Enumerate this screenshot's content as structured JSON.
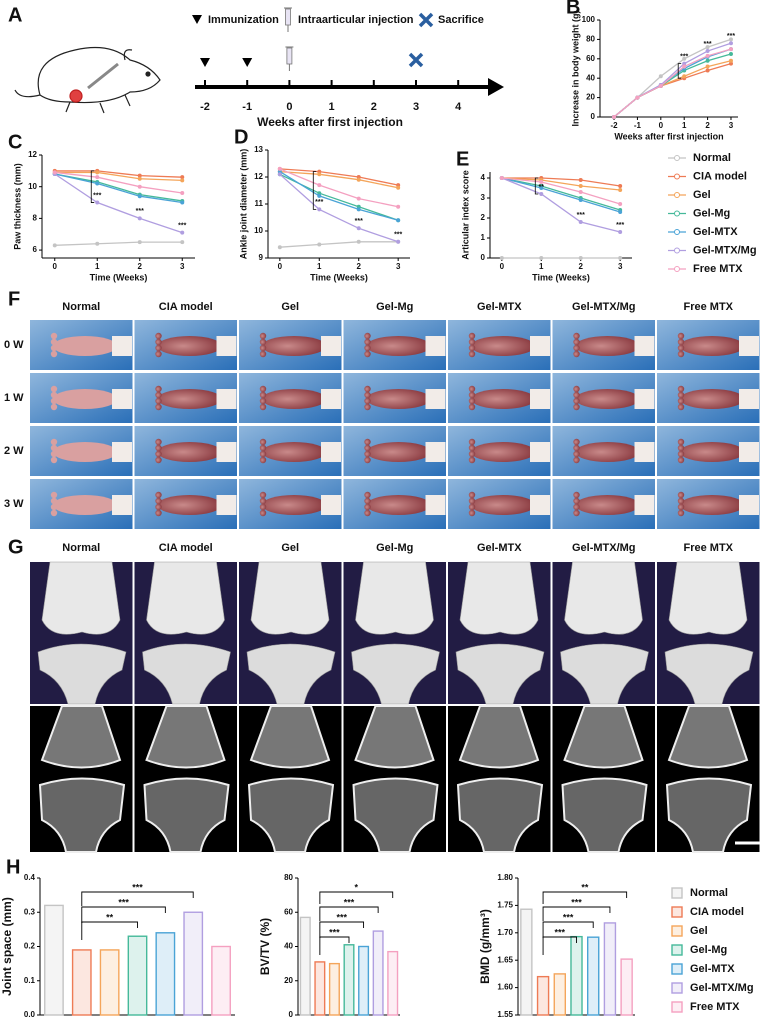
{
  "timeline": {
    "panel": "A",
    "legend": [
      "Immunization",
      "Intraarticular injection",
      "Sacrifice"
    ],
    "ticks": [
      -2,
      -1,
      0,
      1,
      2,
      3,
      4
    ],
    "xlabel": "Weeks after first injection",
    "immunization_weeks": [
      -2,
      -1
    ],
    "injection_weeks": [
      0
    ],
    "sacrifice_weeks": [
      3
    ]
  },
  "photos": {
    "panel": "F",
    "columns": [
      "Normal",
      "CIA model",
      "Gel",
      "Gel-Mg",
      "Gel-MTX",
      "Gel-MTX/Mg",
      "Free MTX"
    ],
    "rows": [
      "0 W",
      "1 W",
      "2 W",
      "3 W"
    ]
  },
  "microct": {
    "panel": "G",
    "columns": [
      "Normal",
      "CIA model",
      "Gel",
      "Gel-Mg",
      "Gel-MTX",
      "Gel-MTX/Mg",
      "Free MTX"
    ]
  },
  "chart_data": [
    {
      "type": "line",
      "panel": "B",
      "ylabel": "Increase in body weight (g)",
      "xlabel": "Weeks after first injection",
      "x": [
        -2,
        -1,
        0,
        1,
        2,
        3
      ],
      "xlim": [
        -2.6,
        3.3
      ],
      "xticks": [
        -2,
        -1,
        0,
        1,
        2,
        3
      ],
      "ylim": [
        0,
        100
      ],
      "yticks": [
        0,
        20,
        40,
        60,
        80,
        100
      ],
      "annotations": [
        "***",
        "***",
        "***"
      ],
      "series": [
        {
          "name": "Normal",
          "color": "#c4c4c4",
          "values": [
            0,
            20,
            42,
            60,
            72,
            80
          ]
        },
        {
          "name": "CIA model",
          "color": "#ee7b55",
          "values": [
            0,
            20,
            32,
            40,
            48,
            55
          ]
        },
        {
          "name": "Gel",
          "color": "#f4a55a",
          "values": [
            0,
            20,
            32,
            42,
            52,
            58
          ]
        },
        {
          "name": "Gel-Mg",
          "color": "#45b99a",
          "values": [
            0,
            20,
            32,
            48,
            58,
            65
          ]
        },
        {
          "name": "Gel-MTX",
          "color": "#4aa3d6",
          "values": [
            0,
            20,
            33,
            50,
            62,
            70
          ]
        },
        {
          "name": "Gel-MTX/Mg",
          "color": "#b09ee0",
          "values": [
            0,
            20,
            33,
            55,
            68,
            76
          ]
        },
        {
          "name": "Free MTX",
          "color": "#f4a0c0",
          "values": [
            0,
            20,
            32,
            52,
            63,
            70
          ]
        }
      ]
    },
    {
      "type": "line",
      "panel": "C",
      "ylabel": "Paw thickness (mm)",
      "xlabel": "Time (Weeks)",
      "x": [
        0,
        1,
        2,
        3
      ],
      "xlim": [
        -0.3,
        3.3
      ],
      "xticks": [
        0,
        1,
        2,
        3
      ],
      "ylim": [
        5.5,
        12
      ],
      "yticks": [
        6,
        8,
        10,
        12
      ],
      "annotations": [
        "***",
        "***",
        "***"
      ],
      "series": [
        {
          "name": "Normal",
          "color": "#c4c4c4",
          "values": [
            6.3,
            6.4,
            6.5,
            6.5
          ]
        },
        {
          "name": "CIA model",
          "color": "#ee7b55",
          "values": [
            11,
            11,
            10.7,
            10.6
          ]
        },
        {
          "name": "Gel",
          "color": "#f4a55a",
          "values": [
            10.9,
            10.9,
            10.5,
            10.4
          ]
        },
        {
          "name": "Gel-Mg",
          "color": "#45b99a",
          "values": [
            10.8,
            10.3,
            9.5,
            9.1
          ]
        },
        {
          "name": "Gel-MTX",
          "color": "#4aa3d6",
          "values": [
            10.8,
            10.2,
            9.4,
            9.0
          ]
        },
        {
          "name": "Gel-MTX/Mg",
          "color": "#b09ee0",
          "values": [
            10.8,
            9.0,
            8.0,
            7.1
          ]
        },
        {
          "name": "Free MTX",
          "color": "#f4a0c0",
          "values": [
            10.9,
            10.6,
            10.0,
            9.6
          ]
        }
      ]
    },
    {
      "type": "line",
      "panel": "D",
      "ylabel": "Ankle joint diameter (mm)",
      "xlabel": "Time (Weeks)",
      "x": [
        0,
        1,
        2,
        3
      ],
      "xlim": [
        -0.3,
        3.3
      ],
      "xticks": [
        0,
        1,
        2,
        3
      ],
      "ylim": [
        9,
        13
      ],
      "yticks": [
        9,
        10,
        11,
        12,
        13
      ],
      "annotations": [
        "***",
        "***",
        "***"
      ],
      "series": [
        {
          "name": "Normal",
          "color": "#c4c4c4",
          "values": [
            9.4,
            9.5,
            9.6,
            9.6
          ]
        },
        {
          "name": "CIA model",
          "color": "#ee7b55",
          "values": [
            12.3,
            12.2,
            12.0,
            11.7
          ]
        },
        {
          "name": "Gel",
          "color": "#f4a55a",
          "values": [
            12.2,
            12.1,
            11.9,
            11.6
          ]
        },
        {
          "name": "Gel-Mg",
          "color": "#45b99a",
          "values": [
            12.1,
            11.4,
            10.9,
            10.4
          ]
        },
        {
          "name": "Gel-MTX",
          "color": "#4aa3d6",
          "values": [
            12.2,
            11.3,
            10.8,
            10.4
          ]
        },
        {
          "name": "Gel-MTX/Mg",
          "color": "#b09ee0",
          "values": [
            12.1,
            10.8,
            10.1,
            9.6
          ]
        },
        {
          "name": "Free MTX",
          "color": "#f4a0c0",
          "values": [
            12.3,
            11.7,
            11.2,
            10.9
          ]
        }
      ]
    },
    {
      "type": "line",
      "panel": "E",
      "ylabel": "Articular index score",
      "xlabel": "Time (Weeks)",
      "x": [
        0,
        1,
        2,
        3
      ],
      "xlim": [
        -0.3,
        3.3
      ],
      "xticks": [
        0,
        1,
        2,
        3
      ],
      "ylim": [
        0,
        4.3
      ],
      "yticks": [
        0,
        1,
        2,
        3,
        4
      ],
      "annotations": [
        "**",
        "***",
        "***"
      ],
      "series": [
        {
          "name": "Normal",
          "color": "#c4c4c4",
          "values": [
            0,
            0,
            0,
            0
          ]
        },
        {
          "name": "CIA model",
          "color": "#ee7b55",
          "values": [
            4,
            4,
            3.9,
            3.6
          ]
        },
        {
          "name": "Gel",
          "color": "#f4a55a",
          "values": [
            4,
            3.9,
            3.6,
            3.4
          ]
        },
        {
          "name": "Gel-Mg",
          "color": "#45b99a",
          "values": [
            4,
            3.6,
            3.0,
            2.4
          ]
        },
        {
          "name": "Gel-MTX",
          "color": "#4aa3d6",
          "values": [
            4,
            3.5,
            2.9,
            2.3
          ]
        },
        {
          "name": "Gel-MTX/Mg",
          "color": "#b09ee0",
          "values": [
            4,
            3.2,
            1.8,
            1.3
          ]
        },
        {
          "name": "Free MTX",
          "color": "#f4a0c0",
          "values": [
            4,
            3.8,
            3.3,
            2.7
          ]
        }
      ]
    },
    {
      "type": "bar",
      "panel": "H",
      "ylabel": "Joint space (mm)",
      "categories": [
        "Normal",
        "CIA model",
        "Gel",
        "Gel-Mg",
        "Gel-MTX",
        "Gel-MTX/Mg",
        "Free MTX"
      ],
      "colors": [
        "#c4c4c4",
        "#ee7b55",
        "#f4a55a",
        "#45b99a",
        "#4aa3d6",
        "#b09ee0",
        "#f4a0c0"
      ],
      "values": [
        0.32,
        0.19,
        0.19,
        0.23,
        0.24,
        0.3,
        0.2
      ],
      "ylim": [
        0,
        0.4
      ],
      "yticks": [
        {
          "value": 0,
          "label": "0.0"
        },
        0.1,
        0.2,
        0.3,
        0.4
      ],
      "annotations": [
        "**",
        "***",
        "***"
      ]
    },
    {
      "type": "bar",
      "ylabel": "BV/TV (%)",
      "categories": [
        "Normal",
        "CIA model",
        "Gel",
        "Gel-Mg",
        "Gel-MTX",
        "Gel-MTX/Mg",
        "Free MTX"
      ],
      "colors": [
        "#c4c4c4",
        "#ee7b55",
        "#f4a55a",
        "#45b99a",
        "#4aa3d6",
        "#b09ee0",
        "#f4a0c0"
      ],
      "values": [
        57,
        31,
        30,
        41,
        40,
        49,
        37
      ],
      "ylim": [
        0,
        80
      ],
      "yticks": [
        0,
        20,
        40,
        60,
        80
      ],
      "annotations": [
        "***",
        "***",
        "***",
        "*"
      ]
    },
    {
      "type": "bar",
      "ylabel": "BMD (g/mm³)",
      "categories": [
        "Normal",
        "CIA model",
        "Gel",
        "Gel-Mg",
        "Gel-MTX",
        "Gel-MTX/Mg",
        "Free MTX"
      ],
      "colors": [
        "#c4c4c4",
        "#ee7b55",
        "#f4a55a",
        "#45b99a",
        "#4aa3d6",
        "#b09ee0",
        "#f4a0c0"
      ],
      "values": [
        1.743,
        1.62,
        1.625,
        1.693,
        1.692,
        1.718,
        1.652
      ],
      "ylim": [
        1.55,
        1.8
      ],
      "yticks": [
        1.55,
        {
          "value": 1.6,
          "label": "1.60"
        },
        1.65,
        {
          "value": 1.7,
          "label": "1.70"
        },
        1.75,
        {
          "value": 1.8,
          "label": "1.80"
        }
      ],
      "annotations": [
        "***",
        "***",
        "***",
        "**"
      ]
    }
  ]
}
